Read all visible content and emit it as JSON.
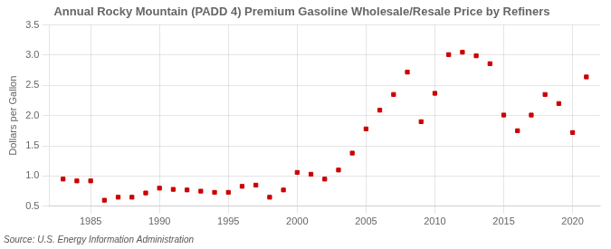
{
  "chart_data": {
    "type": "scatter",
    "title": "Annual Rocky Mountain (PADD 4) Premium Gasoline Wholesale/Resale Price by Refiners",
    "ylabel": "Dollars per Gallon",
    "annotation": "Source: U.S. Energy Information Administration",
    "x": [
      1983,
      1984,
      1985,
      1986,
      1987,
      1988,
      1989,
      1990,
      1991,
      1992,
      1993,
      1994,
      1995,
      1996,
      1997,
      1998,
      1999,
      2000,
      2001,
      2002,
      2003,
      2004,
      2005,
      2006,
      2007,
      2008,
      2009,
      2010,
      2011,
      2012,
      2013,
      2014,
      2015,
      2016,
      2017,
      2018,
      2019,
      2020,
      2021
    ],
    "values": [
      0.95,
      0.92,
      0.92,
      0.6,
      0.65,
      0.65,
      0.72,
      0.8,
      0.78,
      0.77,
      0.75,
      0.73,
      0.73,
      0.83,
      0.85,
      0.65,
      0.77,
      1.06,
      1.03,
      0.95,
      1.1,
      1.38,
      1.78,
      2.09,
      2.35,
      2.72,
      1.9,
      2.37,
      3.01,
      3.05,
      2.99,
      2.86,
      2.01,
      1.75,
      2.01,
      2.35,
      2.2,
      1.72,
      2.64
    ],
    "color": "#cc0000",
    "marker": "square",
    "xlim": [
      1982,
      2022
    ],
    "xticks": [
      1985,
      1990,
      1995,
      2000,
      2005,
      2010,
      2015,
      2020
    ],
    "ylim": [
      0.5,
      3.5
    ],
    "yticks": [
      0.5,
      {
        "value": 1.0,
        "label": "1.0"
      },
      1.5,
      {
        "value": 2.0,
        "label": "2.0"
      },
      2.5,
      {
        "value": 3.0,
        "label": "3.0"
      },
      3.5
    ],
    "grid": true
  }
}
